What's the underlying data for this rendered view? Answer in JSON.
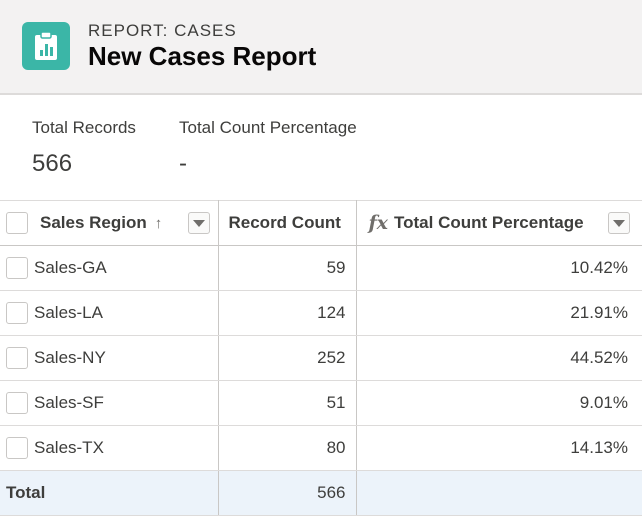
{
  "header": {
    "eyebrow": "REPORT: CASES",
    "title": "New Cases Report",
    "icon": "report-icon",
    "icon_color": "#3bb6a7"
  },
  "summary": {
    "total_records_label": "Total Records",
    "total_records_value": "566",
    "total_pct_label": "Total Count Percentage",
    "total_pct_value": "-"
  },
  "table": {
    "columns": [
      {
        "label": "Sales Region",
        "sort": "↑"
      },
      {
        "label": "Record Count"
      },
      {
        "label": "Total Count Percentage",
        "formula_icon": "fx"
      }
    ],
    "rows": [
      {
        "region": "Sales-GA",
        "count": "59",
        "pct": "10.42%"
      },
      {
        "region": "Sales-LA",
        "count": "124",
        "pct": "21.91%"
      },
      {
        "region": "Sales-NY",
        "count": "252",
        "pct": "44.52%"
      },
      {
        "region": "Sales-SF",
        "count": "51",
        "pct": "9.01%"
      },
      {
        "region": "Sales-TX",
        "count": "80",
        "pct": "14.13%"
      }
    ],
    "total": {
      "label": "Total",
      "count": "566",
      "pct": ""
    }
  }
}
